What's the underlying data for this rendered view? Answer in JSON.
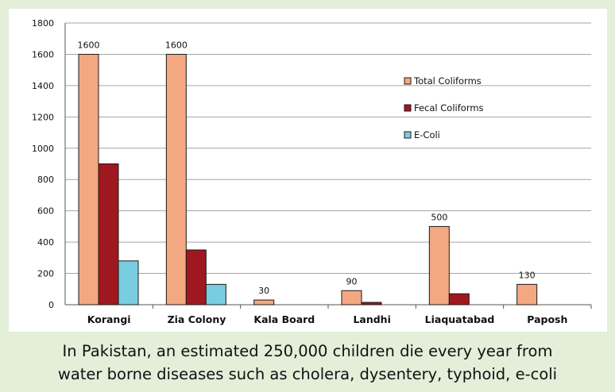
{
  "chart_data": {
    "type": "bar",
    "categories": [
      "Korangi",
      "Zia Colony",
      "Kala Board",
      "Landhi",
      "Liaquatabad",
      "Paposh"
    ],
    "series": [
      {
        "name": "Total Coliforms",
        "values": [
          1600,
          1600,
          30,
          90,
          500,
          130
        ],
        "color": "#f4a882"
      },
      {
        "name": "Fecal Coliforms",
        "values": [
          900,
          350,
          0,
          15,
          70,
          0
        ],
        "color": "#a0181f"
      },
      {
        "name": "E-Coli",
        "values": [
          280,
          130,
          0,
          0,
          0,
          0
        ],
        "color": "#79cde1"
      }
    ],
    "data_labels": [
      "1600",
      "1600",
      "30",
      "90",
      "500",
      "130"
    ],
    "ylim": [
      0,
      1800
    ],
    "yticks": [
      "0",
      "200",
      "400",
      "600",
      "800",
      "1000",
      "1200",
      "1400",
      "1600",
      "1800"
    ],
    "grid": true,
    "legend": "upper-right inside plot"
  },
  "caption": {
    "line1": "In Pakistan, an estimated 250,000 children die every year from",
    "line2": "water borne diseases such as cholera, dysentery, typhoid, e-coli"
  }
}
